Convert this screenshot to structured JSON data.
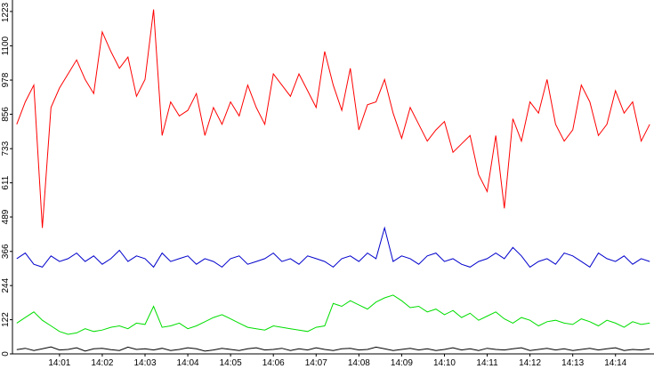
{
  "chart_data": {
    "type": "line",
    "categories": [
      null,
      null,
      null,
      null,
      null,
      "14:01",
      null,
      null,
      null,
      null,
      "14:02",
      null,
      null,
      null,
      null,
      "14:03",
      null,
      null,
      null,
      null,
      "14:04",
      null,
      null,
      null,
      null,
      "14:05",
      null,
      null,
      null,
      null,
      "14:06",
      null,
      null,
      null,
      null,
      "14:07",
      null,
      null,
      null,
      null,
      "14:08",
      null,
      null,
      null,
      null,
      "14:09",
      null,
      null,
      null,
      null,
      "14:10",
      null,
      null,
      null,
      null,
      "14:11",
      null,
      null,
      null,
      null,
      "14:12",
      null,
      null,
      null,
      null,
      "14:13",
      null,
      null,
      null,
      null,
      "14:14",
      null,
      null,
      null,
      null
    ],
    "series": [
      {
        "color": "#ff0000",
        "values": [
          820,
          900,
          960,
          450,
          880,
          950,
          1000,
          1050,
          980,
          930,
          1150,
          1080,
          1020,
          1060,
          920,
          980,
          1230,
          780,
          900,
          850,
          870,
          930,
          780,
          880,
          820,
          900,
          850,
          960,
          880,
          820,
          1000,
          960,
          920,
          1000,
          940,
          880,
          1080,
          960,
          870,
          1020,
          800,
          890,
          900,
          980,
          860,
          770,
          880,
          820,
          760,
          800,
          830,
          720,
          750,
          780,
          640,
          580,
          780,
          520,
          840,
          760,
          900,
          860,
          980,
          820,
          760,
          800,
          960,
          900,
          780,
          820,
          940,
          860,
          900,
          760,
          820
        ]
      },
      {
        "color": "#0000cc",
        "values": [
          340,
          360,
          320,
          310,
          350,
          330,
          340,
          360,
          330,
          350,
          320,
          340,
          370,
          330,
          350,
          340,
          310,
          360,
          330,
          340,
          350,
          320,
          340,
          330,
          310,
          340,
          350,
          320,
          330,
          340,
          360,
          330,
          340,
          320,
          350,
          340,
          330,
          310,
          340,
          350,
          330,
          360,
          340,
          450,
          330,
          350,
          340,
          320,
          350,
          360,
          330,
          340,
          320,
          310,
          330,
          340,
          360,
          340,
          380,
          350,
          310,
          330,
          340,
          320,
          360,
          350,
          330,
          310,
          360,
          340,
          330,
          350,
          320,
          340,
          330
        ]
      },
      {
        "color": "#00dd00",
        "values": [
          110,
          130,
          150,
          120,
          100,
          80,
          70,
          75,
          90,
          80,
          85,
          95,
          100,
          90,
          110,
          105,
          170,
          95,
          100,
          110,
          90,
          100,
          115,
          130,
          140,
          125,
          110,
          95,
          90,
          85,
          100,
          95,
          90,
          85,
          80,
          95,
          100,
          180,
          170,
          190,
          175,
          160,
          185,
          200,
          210,
          190,
          165,
          170,
          150,
          160,
          140,
          155,
          130,
          145,
          120,
          135,
          150,
          125,
          110,
          130,
          120,
          100,
          115,
          120,
          110,
          105,
          125,
          115,
          100,
          120,
          110,
          95,
          115,
          105,
          110
        ]
      },
      {
        "color": "#000000",
        "values": [
          15,
          20,
          12,
          18,
          25,
          14,
          16,
          22,
          10,
          18,
          20,
          15,
          12,
          24,
          16,
          18,
          14,
          20,
          12,
          16,
          22,
          18,
          10,
          14,
          20,
          16,
          12,
          18,
          22,
          14,
          16,
          20,
          12,
          18,
          14,
          22,
          16,
          12,
          18,
          20,
          14,
          16,
          24,
          18,
          12,
          16,
          20,
          14,
          18,
          12,
          16,
          22,
          14,
          18,
          12,
          20,
          16,
          14,
          18,
          22,
          12,
          16,
          20,
          14,
          18,
          12,
          16,
          20,
          14,
          18,
          22,
          12,
          16,
          14,
          18
        ]
      }
    ],
    "ylim": [
      0,
      1264
    ],
    "yticks": [
      0,
      122,
      244,
      366,
      489,
      611,
      733,
      856,
      978,
      1100,
      1223
    ]
  }
}
